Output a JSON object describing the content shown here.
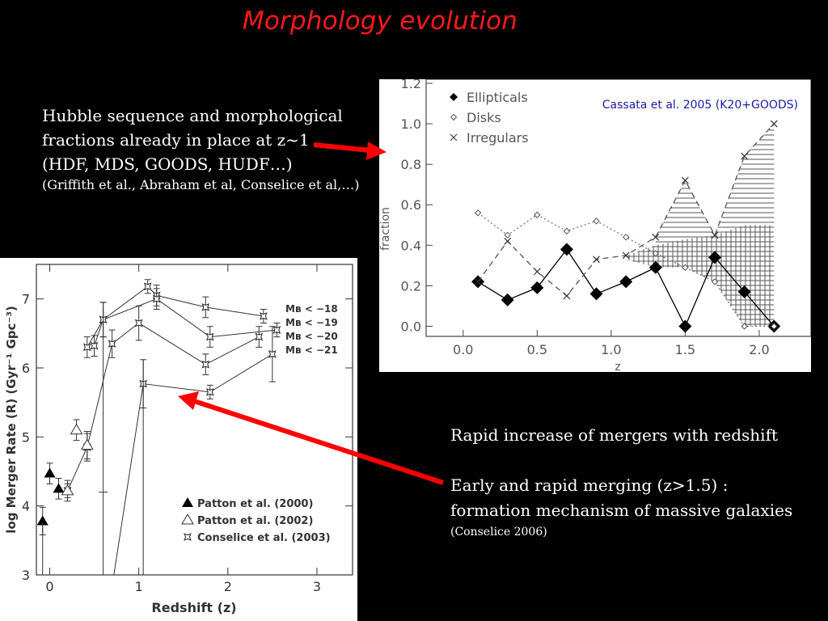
{
  "slide": {
    "title": "Morphology evolution",
    "hubble_text": {
      "line1": "Hubble sequence and morphological",
      "line2": "fractions already in place at z~1",
      "line3": "(HDF, MDS, GOODS, HUDF…)",
      "refs": "(Griffith et al., Abraham et al, Conselice et al,…)"
    },
    "merger_text": {
      "line1": "Rapid increase of mergers with redshift",
      "line2": "Early and rapid merging (z>1.5) :",
      "line3": "formation mechanism of massive galaxies",
      "ref": "(Conselice 2006)"
    }
  },
  "chart_data": [
    {
      "type": "line",
      "citation": "Cassata et al. 2005 (K20+GOODS)",
      "xlabel": "z",
      "ylabel": "fraction",
      "xlim": [
        -0.25,
        2.35
      ],
      "ylim": [
        -0.05,
        1.2
      ],
      "xticks": [
        0.0,
        0.5,
        1.0,
        1.5,
        2.0
      ],
      "xtick_labels": [
        "0.0",
        "0.5",
        "1.0",
        "1.5",
        "2.0"
      ],
      "yticks": [
        0.0,
        0.2,
        0.4,
        0.6,
        0.8,
        1.0,
        1.2
      ],
      "ytick_labels": [
        "0.0",
        "0.2",
        "0.4",
        "0.6",
        "0.8",
        "1.0",
        "1.2"
      ],
      "legend_position": "top-left",
      "series": [
        {
          "name": "Ellipticals",
          "marker": "filled-diamond",
          "line": "solid",
          "x": [
            0.1,
            0.3,
            0.5,
            0.7,
            0.9,
            1.1,
            1.3,
            1.5,
            1.7,
            1.9,
            2.1
          ],
          "y": [
            0.22,
            0.13,
            0.19,
            0.38,
            0.16,
            0.22,
            0.29,
            0.0,
            0.34,
            0.17,
            0.0
          ]
        },
        {
          "name": "Disks",
          "marker": "open-diamond",
          "line": "dotted",
          "x": [
            0.1,
            0.3,
            0.5,
            0.7,
            0.9,
            1.1,
            1.3,
            1.5,
            1.7,
            1.9,
            2.1
          ],
          "y": [
            0.56,
            0.45,
            0.55,
            0.47,
            0.52,
            0.44,
            0.36,
            0.29,
            0.22,
            0.0,
            0.0
          ]
        },
        {
          "name": "Irregulars",
          "marker": "cross",
          "line": "dashed",
          "x": [
            0.1,
            0.3,
            0.5,
            0.7,
            0.9,
            1.1,
            1.3,
            1.5,
            1.7,
            1.9,
            2.1
          ],
          "y": [
            0.22,
            0.42,
            0.27,
            0.15,
            0.33,
            0.35,
            0.44,
            0.72,
            0.45,
            0.84,
            1.0
          ]
        }
      ],
      "colors": {
        "ellipticals": "#000000",
        "disks": "#777777",
        "irregulars": "#555555",
        "citation": "#1a1aa8"
      }
    },
    {
      "type": "line",
      "xlabel": "Redshift (z)",
      "ylabel": "log Merger Rate (R) (Gyr⁻¹ Gpc⁻³)",
      "xlim": [
        -0.15,
        3.4
      ],
      "ylim": [
        3,
        7.5
      ],
      "xticks": [
        0,
        1,
        2,
        3
      ],
      "xtick_labels": [
        "0",
        "1",
        "2",
        "3"
      ],
      "yticks": [
        3,
        4,
        5,
        6,
        7
      ],
      "ytick_labels": [
        "3",
        "4",
        "5",
        "6",
        "7"
      ],
      "legend_position": "bottom-right",
      "curve_labels": [
        "M_B < −18",
        "M_B < −19",
        "M_B < −20",
        "M_B < −21"
      ],
      "series": [
        {
          "name": "Patton et al. (2000)",
          "marker": "filled-triangle",
          "x": [
            -0.08,
            0.0,
            0.1
          ],
          "y": [
            3.78,
            4.47,
            4.25
          ],
          "yerr": [
            0.2,
            0.15,
            0.15
          ]
        },
        {
          "name": "Patton et al. (2002)",
          "marker": "open-triangle",
          "x": [
            0.2,
            0.3,
            0.42
          ],
          "y": [
            4.22,
            5.1,
            4.88
          ],
          "yerr": [
            0.15,
            0.15,
            0.2
          ]
        },
        {
          "name": "Conselice et al. (2003)",
          "marker": "open-star",
          "curves": [
            {
              "label": "M_B < −18",
              "x": [
                0.5,
                0.6,
                1.1,
                1.2,
                1.75,
                2.4
              ],
              "y": [
                6.32,
                6.7,
                7.18,
                7.05,
                6.88,
                6.75
              ],
              "yerr": [
                0.15,
                0.25,
                0.1,
                0.15,
                0.15,
                0.1
              ]
            },
            {
              "label": "M_B < −19",
              "x": [
                0.42,
                0.6,
                1.2,
                1.8,
                2.55
              ],
              "y": [
                6.3,
                6.7,
                7.0,
                6.45,
                6.55
              ],
              "yerr": [
                0.15,
                0.25,
                0.15,
                0.15,
                0.1
              ]
            },
            {
              "label": "M_B < −20",
              "x": [
                0.2,
                0.42,
                0.7,
                1.0,
                1.75,
                2.35
              ],
              "y": [
                4.22,
                4.85,
                6.35,
                6.65,
                6.05,
                6.45
              ],
              "yerr": [
                0.1,
                0.2,
                0.2,
                0.25,
                0.15,
                0.15
              ]
            },
            {
              "label": "M_B < −21",
              "x": [
                0.72,
                1.05,
                1.8,
                2.5
              ],
              "y": [
                2.5,
                5.77,
                5.65,
                6.2
              ],
              "yerr": [
                0.0,
                0.35,
                0.1,
                0.4
              ]
            }
          ]
        }
      ]
    }
  ]
}
